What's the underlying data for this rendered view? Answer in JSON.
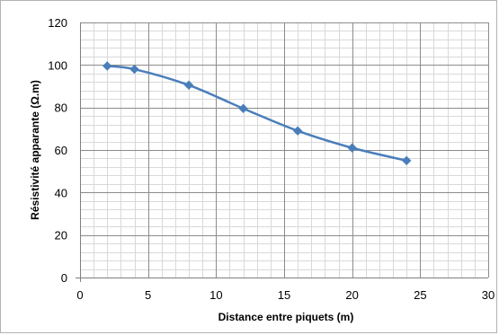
{
  "chart_data": {
    "type": "scatter",
    "title": "",
    "xlabel": "Distance entre piquets (m)",
    "ylabel": "Résistivité apparante (Ω.m)",
    "xlim": [
      0,
      30
    ],
    "ylim": [
      0,
      120
    ],
    "x_ticks": [
      "0",
      "5",
      "10",
      "15",
      "20",
      "25",
      "30"
    ],
    "y_ticks": [
      "0",
      "20",
      "40",
      "60",
      "80",
      "100",
      "120"
    ],
    "x_major_step": 5,
    "y_major_step": 20,
    "grid": true,
    "minor_grid": true,
    "legend": "none",
    "series": [
      {
        "x": [
          2,
          4,
          8,
          12,
          16,
          20,
          24
        ],
        "y": [
          99.5,
          98,
          90.5,
          79.5,
          69,
          61,
          55
        ],
        "color": "#4a7ebb",
        "line": "smooth",
        "marker": "diamond"
      }
    ]
  }
}
